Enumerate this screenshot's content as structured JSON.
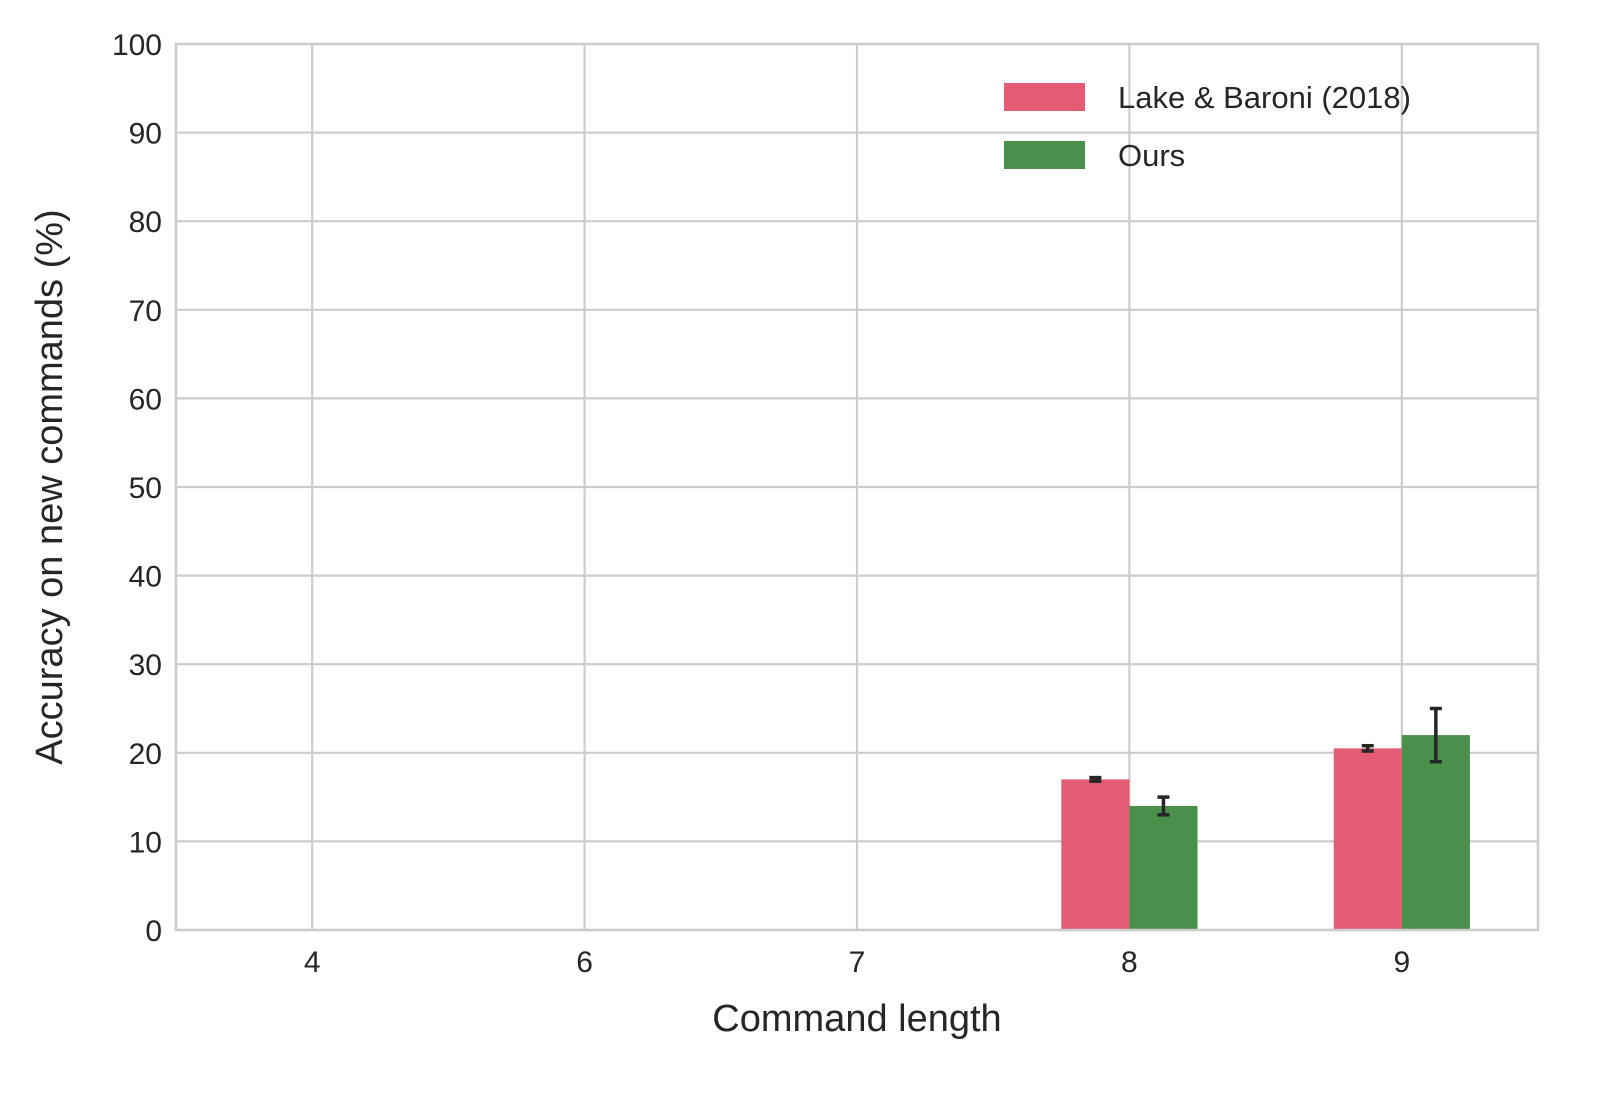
{
  "chart_data": {
    "type": "bar",
    "categories": [
      "4",
      "6",
      "7",
      "8",
      "9"
    ],
    "series": [
      {
        "name": "Lake & Baroni (2018)",
        "color": "#e35c74",
        "values": [
          0,
          0,
          0,
          17.0,
          20.5
        ],
        "errors": [
          0,
          0,
          0,
          0.2,
          0.3
        ]
      },
      {
        "name": "Ours",
        "color": "#4a8f4a",
        "values": [
          0,
          0,
          0,
          14.0,
          22.0
        ],
        "errors": [
          0,
          0,
          0,
          1.0,
          3.0
        ]
      }
    ],
    "title": "",
    "xlabel": "Command length",
    "ylabel": "Accuracy on new commands (%)",
    "ylim": [
      0,
      100
    ],
    "yticks": [
      0,
      10,
      20,
      30,
      40,
      50,
      60,
      70,
      80,
      90,
      100
    ],
    "grid": true,
    "legend_position": "top-right"
  }
}
